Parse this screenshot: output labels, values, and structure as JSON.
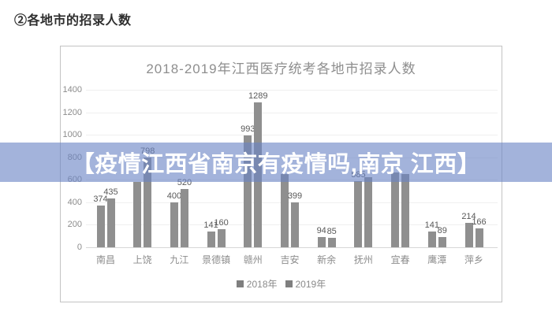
{
  "page": {
    "heading": "②各地市的招录人数"
  },
  "overlay": {
    "text": "【疫情江西省南京有疫情吗,南京 江西】",
    "bg_color": "#6b85c5",
    "text_color": "#ffffff"
  },
  "chart_data": {
    "type": "bar",
    "title": "2018-2019年江西医疗统考各地市招录人数",
    "categories": [
      "南昌",
      "上饶",
      "九江",
      "景德镇",
      "赣州",
      "吉安",
      "新余",
      "抚州",
      "宜春",
      "鹰潭",
      "萍乡"
    ],
    "series": [
      {
        "name": "2018年",
        "values": [
          374,
          580,
          400,
          141,
          993,
          650,
          94,
          585,
          665,
          141,
          214
        ],
        "labels": [
          "374",
          "",
          "400",
          "141",
          "993",
          "",
          "94",
          "585",
          "",
          "141",
          "214"
        ]
      },
      {
        "name": "2019年",
        "values": [
          435,
          798,
          520,
          160,
          1289,
          399,
          85,
          620,
          650,
          89,
          166
        ],
        "labels": [
          "435",
          "798",
          "520",
          "160",
          "1289",
          "399",
          "85",
          "",
          "",
          "89",
          "166"
        ]
      }
    ],
    "y_ticks": [
      0,
      200,
      400,
      600,
      800,
      1000,
      1200,
      1400
    ],
    "ylim": [
      0,
      1400
    ],
    "grid": true,
    "legend_position": "bottom",
    "bar_color": "#8f8f8f",
    "label_color": "#595959",
    "axis_color": "#8c8c8c"
  }
}
